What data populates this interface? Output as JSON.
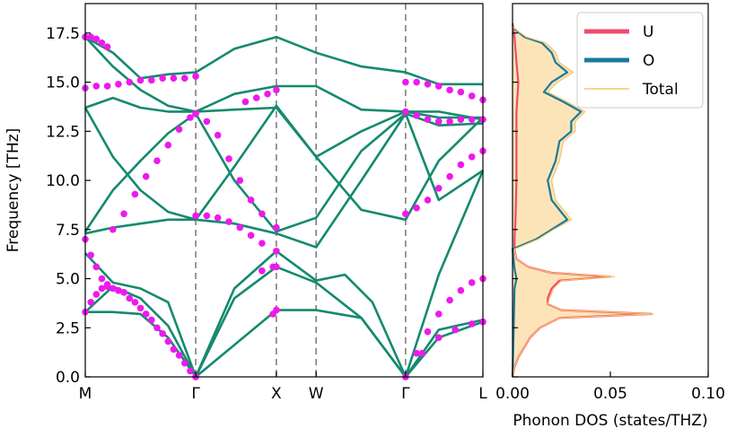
{
  "chart_data": [
    {
      "type": "line",
      "title": "",
      "xlabel": "",
      "ylabel": "Frequency [THz]",
      "ylim": [
        0,
        19
      ],
      "x_ticks": [
        {
          "label": "M",
          "x": 0
        },
        {
          "label": "Γ",
          "x": 1.0
        },
        {
          "label": "X",
          "x": 1.73
        },
        {
          "label": "W",
          "x": 2.09
        },
        {
          "label": "Γ",
          "x": 2.9
        },
        {
          "label": "L",
          "x": 3.6
        }
      ],
      "xlim": [
        0,
        3.6
      ],
      "y_ticks": [
        0.0,
        2.5,
        5.0,
        7.5,
        10.0,
        12.5,
        15.0,
        17.5
      ],
      "y_tick_labels": [
        "0.0",
        "2.5",
        "5.0",
        "7.5",
        "10.0",
        "12.5",
        "15.0",
        "17.5"
      ],
      "high_symmetry_lines": [
        1.0,
        1.73,
        2.09,
        2.9
      ],
      "colors": {
        "bands": "#148a6e",
        "dots": "#ee19ee",
        "vlines": "#808080"
      },
      "series": [
        {
          "name": "calc-band-1",
          "x": [
            0,
            0.25,
            0.5,
            0.75,
            1.0,
            1.73,
            2.09,
            2.5,
            2.9,
            3.2,
            3.6
          ],
          "values": [
            3.3,
            3.3,
            3.2,
            2.0,
            0.0,
            3.4,
            3.4,
            3.0,
            0.0,
            2.0,
            2.8
          ]
        },
        {
          "name": "calc-band-2",
          "x": [
            0,
            0.25,
            0.5,
            0.75,
            1.0,
            1.35,
            1.73,
            2.09,
            2.5,
            2.9,
            3.2,
            3.6
          ],
          "values": [
            3.3,
            4.6,
            4.0,
            2.6,
            0.0,
            4.0,
            5.6,
            4.8,
            3.0,
            0.0,
            2.4,
            2.9
          ]
        },
        {
          "name": "calc-band-3",
          "x": [
            0,
            0.25,
            0.5,
            0.75,
            1.0,
            1.35,
            1.73,
            2.09,
            2.35,
            2.6,
            2.9,
            3.2,
            3.6
          ],
          "values": [
            6.3,
            4.8,
            4.5,
            3.8,
            0.0,
            4.5,
            6.4,
            4.9,
            5.2,
            3.8,
            0.0,
            5.2,
            10.5
          ]
        },
        {
          "name": "calc-band-4",
          "x": [
            0,
            0.25,
            0.5,
            0.75,
            1.0,
            1.35,
            1.73,
            2.09,
            2.5,
            2.9,
            3.2,
            3.6
          ],
          "values": [
            7.3,
            7.6,
            7.8,
            8.0,
            8.0,
            7.8,
            7.3,
            6.6,
            10.0,
            13.4,
            9.0,
            10.5
          ]
        },
        {
          "name": "calc-band-5",
          "x": [
            0,
            0.25,
            0.5,
            0.75,
            1.0,
            1.35,
            1.73,
            2.09,
            2.5,
            2.9,
            3.2,
            3.6
          ],
          "values": [
            7.4,
            9.5,
            11.0,
            12.4,
            13.4,
            10.0,
            7.4,
            8.1,
            11.5,
            13.4,
            12.8,
            12.9
          ]
        },
        {
          "name": "calc-band-6",
          "x": [
            0,
            0.25,
            0.5,
            0.75,
            1.0,
            1.35,
            1.73,
            2.09,
            2.5,
            2.9,
            3.2,
            3.6
          ],
          "values": [
            13.7,
            11.2,
            9.5,
            8.4,
            8.0,
            10.7,
            13.8,
            11.2,
            8.5,
            8.0,
            11.0,
            13.2
          ]
        },
        {
          "name": "calc-band-7",
          "x": [
            0,
            0.25,
            0.5,
            0.75,
            1.0,
            1.35,
            1.73,
            2.09,
            2.5,
            2.9,
            3.2,
            3.6
          ],
          "values": [
            13.7,
            14.2,
            13.7,
            13.5,
            13.5,
            13.6,
            13.7,
            11.2,
            12.5,
            13.5,
            13.2,
            13.2
          ]
        },
        {
          "name": "calc-band-8",
          "x": [
            0,
            0.25,
            0.5,
            0.75,
            1.0,
            1.35,
            1.73,
            2.09,
            2.5,
            2.9,
            3.2,
            3.6
          ],
          "values": [
            17.3,
            16.5,
            15.2,
            15.4,
            15.5,
            16.7,
            17.3,
            16.5,
            15.8,
            15.5,
            14.9,
            14.9
          ]
        },
        {
          "name": "calc-band-9",
          "x": [
            0,
            0.25,
            0.5,
            0.75,
            1.0,
            1.35,
            1.73,
            2.09,
            2.5,
            2.9,
            3.2,
            3.6
          ],
          "values": [
            17.3,
            15.8,
            14.6,
            13.8,
            13.5,
            14.4,
            14.8,
            14.8,
            13.6,
            13.5,
            13.5,
            13.1
          ]
        }
      ],
      "experimental_points": [
        {
          "x": [
            0.0,
            0.05,
            0.1,
            0.15,
            0.2,
            0.25,
            0.3,
            0.35,
            0.45,
            0.55,
            0.65,
            0.75,
            0.85,
            0.95,
            1.0
          ],
          "values": [
            7.0,
            6.2,
            5.6,
            5.0,
            4.7,
            4.5,
            4.4,
            4.3,
            3.8,
            3.2,
            2.5,
            1.8,
            1.1,
            0.3,
            0.0
          ]
        },
        {
          "x": [
            0.0,
            0.05,
            0.1,
            0.15,
            0.2,
            0.3,
            0.4,
            0.5,
            0.6,
            0.7,
            0.8,
            0.9,
            1.0
          ],
          "values": [
            3.3,
            3.8,
            4.2,
            4.5,
            4.6,
            4.4,
            4.0,
            3.5,
            2.9,
            2.2,
            1.4,
            0.7,
            0.0
          ]
        },
        {
          "x": [
            0.0,
            0.1,
            0.2,
            0.3,
            0.4,
            0.5,
            0.6,
            0.7,
            0.8,
            0.9,
            1.0
          ],
          "values": [
            14.7,
            14.8,
            14.8,
            14.9,
            15.0,
            15.1,
            15.1,
            15.2,
            15.2,
            15.2,
            15.3
          ]
        },
        {
          "x": [
            0.0,
            0.05,
            0.1,
            0.15,
            0.2
          ],
          "values": [
            17.3,
            17.3,
            17.2,
            17.0,
            16.8
          ]
        },
        {
          "x": [
            0.25,
            0.35,
            0.45,
            0.55,
            0.65,
            0.75,
            0.85,
            0.95
          ],
          "values": [
            7.5,
            8.3,
            9.3,
            10.2,
            11.0,
            11.8,
            12.6,
            13.2
          ]
        },
        {
          "x": [
            1.0,
            1.1,
            1.2,
            1.3,
            1.4,
            1.5,
            1.6,
            1.73
          ],
          "values": [
            13.4,
            13.0,
            12.3,
            11.1,
            10.0,
            9.0,
            8.3,
            7.6
          ]
        },
        {
          "x": [
            1.0,
            1.1,
            1.2,
            1.3,
            1.4,
            1.5,
            1.6,
            1.73
          ],
          "values": [
            8.2,
            8.2,
            8.1,
            7.9,
            7.6,
            7.2,
            6.8,
            6.4
          ]
        },
        {
          "x": [
            1.45,
            1.55,
            1.65,
            1.73
          ],
          "values": [
            14.0,
            14.2,
            14.4,
            14.6
          ]
        },
        {
          "x": [
            1.6,
            1.7,
            1.73
          ],
          "values": [
            5.4,
            5.6,
            5.6
          ]
        },
        {
          "x": [
            1.7,
            1.73
          ],
          "values": [
            3.2,
            3.4
          ]
        },
        {
          "x": [
            2.9,
            3.0,
            3.1,
            3.2,
            3.3,
            3.4,
            3.5,
            3.6
          ],
          "values": [
            15.0,
            15.0,
            14.9,
            14.8,
            14.6,
            14.5,
            14.3,
            14.1
          ]
        },
        {
          "x": [
            2.9,
            3.0,
            3.1,
            3.2,
            3.3,
            3.4,
            3.5,
            3.6
          ],
          "values": [
            13.5,
            13.3,
            13.1,
            13.0,
            13.0,
            13.1,
            13.1,
            13.1
          ]
        },
        {
          "x": [
            2.9,
            3.0,
            3.1,
            3.2,
            3.3,
            3.4,
            3.5,
            3.6
          ],
          "values": [
            8.3,
            8.6,
            9.0,
            9.6,
            10.2,
            10.8,
            11.2,
            11.5
          ]
        },
        {
          "x": [
            2.9,
            3.0,
            3.1,
            3.2,
            3.3,
            3.4,
            3.5,
            3.6
          ],
          "values": [
            0.0,
            1.2,
            2.3,
            3.2,
            3.9,
            4.4,
            4.8,
            5.0
          ]
        },
        {
          "x": [
            2.9,
            3.05,
            3.2,
            3.35,
            3.5,
            3.6
          ],
          "values": [
            0.0,
            1.2,
            2.0,
            2.4,
            2.7,
            2.8
          ]
        }
      ]
    },
    {
      "type": "area",
      "title": "",
      "xlabel": "Phonon DOS (states/THZ)",
      "ylabel": "",
      "xlim": [
        0,
        0.1
      ],
      "ylim": [
        0,
        19
      ],
      "x_ticks": [
        0.0,
        0.05,
        0.1
      ],
      "x_tick_labels": [
        "0.00",
        "0.05",
        "0.10"
      ],
      "legend_position": "top-right",
      "series": [
        {
          "name": "U",
          "color": "#ef4c6c",
          "freq": [
            0.0,
            0.5,
            1.0,
            1.5,
            2.0,
            2.5,
            3.0,
            3.2,
            3.4,
            3.7,
            4.0,
            4.5,
            4.9,
            5.1,
            5.3,
            5.6,
            6.0,
            6.5,
            7.0,
            8.0,
            10.0,
            12.0,
            13.5,
            15.0,
            16.0,
            17.3,
            18.0
          ],
          "values": [
            0.0,
            0.001,
            0.003,
            0.006,
            0.009,
            0.014,
            0.024,
            0.071,
            0.025,
            0.018,
            0.018,
            0.02,
            0.024,
            0.05,
            0.02,
            0.008,
            0.002,
            0.001,
            0.001,
            0.0015,
            0.002,
            0.002,
            0.002,
            0.003,
            0.002,
            0.001,
            0.0
          ]
        },
        {
          "name": "O",
          "color": "#1a7a9a",
          "freq": [
            0.0,
            2.0,
            4.5,
            5.0,
            5.5,
            6.5,
            7.0,
            7.5,
            8.0,
            9.0,
            10.0,
            11.0,
            12.0,
            12.5,
            13.0,
            13.5,
            14.0,
            14.5,
            15.0,
            15.5,
            16.0,
            16.5,
            17.0,
            17.3,
            17.8
          ],
          "values": [
            0.0,
            0.0005,
            0.001,
            0.002,
            0.001,
            0.0,
            0.012,
            0.02,
            0.028,
            0.02,
            0.018,
            0.022,
            0.024,
            0.03,
            0.03,
            0.035,
            0.026,
            0.016,
            0.02,
            0.028,
            0.022,
            0.02,
            0.015,
            0.006,
            0.0
          ]
        },
        {
          "name": "Total",
          "color": "#f5c56b",
          "freq": [
            0.0,
            0.5,
            1.0,
            1.5,
            2.0,
            2.5,
            3.0,
            3.2,
            3.4,
            3.7,
            4.0,
            4.5,
            4.9,
            5.1,
            5.3,
            5.6,
            6.0,
            6.5,
            7.0,
            7.5,
            8.0,
            9.0,
            10.0,
            11.0,
            12.0,
            12.5,
            13.0,
            13.5,
            14.0,
            14.5,
            15.0,
            15.5,
            16.0,
            16.5,
            17.0,
            17.3,
            17.8
          ],
          "values": [
            0.0,
            0.001,
            0.003,
            0.006,
            0.009,
            0.014,
            0.024,
            0.072,
            0.025,
            0.018,
            0.019,
            0.021,
            0.025,
            0.052,
            0.02,
            0.008,
            0.002,
            0.001,
            0.013,
            0.021,
            0.03,
            0.022,
            0.02,
            0.024,
            0.026,
            0.032,
            0.032,
            0.037,
            0.028,
            0.018,
            0.023,
            0.031,
            0.024,
            0.022,
            0.017,
            0.007,
            0.0
          ]
        }
      ]
    }
  ]
}
